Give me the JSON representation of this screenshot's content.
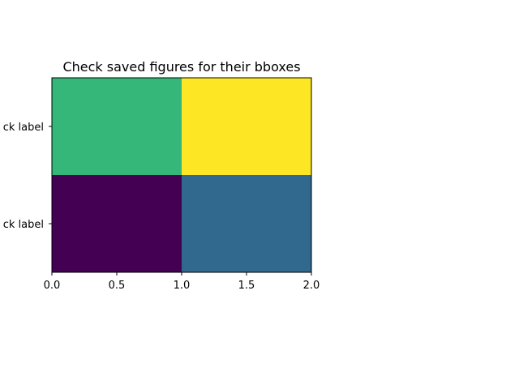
{
  "chart_data": {
    "type": "heatmap",
    "title": "Check saved figures for their bboxes",
    "xlabel": "",
    "ylabel": "",
    "xlim": [
      0,
      2
    ],
    "ylim": [
      0,
      2
    ],
    "x_ticks": [
      "0.0",
      "0.5",
      "1.0",
      "1.5",
      "2.0"
    ],
    "y_tick_labels": [
      "ck label",
      "ck label"
    ],
    "cells": [
      {
        "x": [
          0,
          1
        ],
        "y": [
          1,
          2
        ],
        "color": "#35b779"
      },
      {
        "x": [
          1,
          2
        ],
        "y": [
          1,
          2
        ],
        "color": "#fde725"
      },
      {
        "x": [
          0,
          1
        ],
        "y": [
          0,
          1
        ],
        "color": "#440154"
      },
      {
        "x": [
          1,
          2
        ],
        "y": [
          0,
          1
        ],
        "color": "#31688e"
      }
    ],
    "grid": false,
    "colormap": "viridis"
  }
}
